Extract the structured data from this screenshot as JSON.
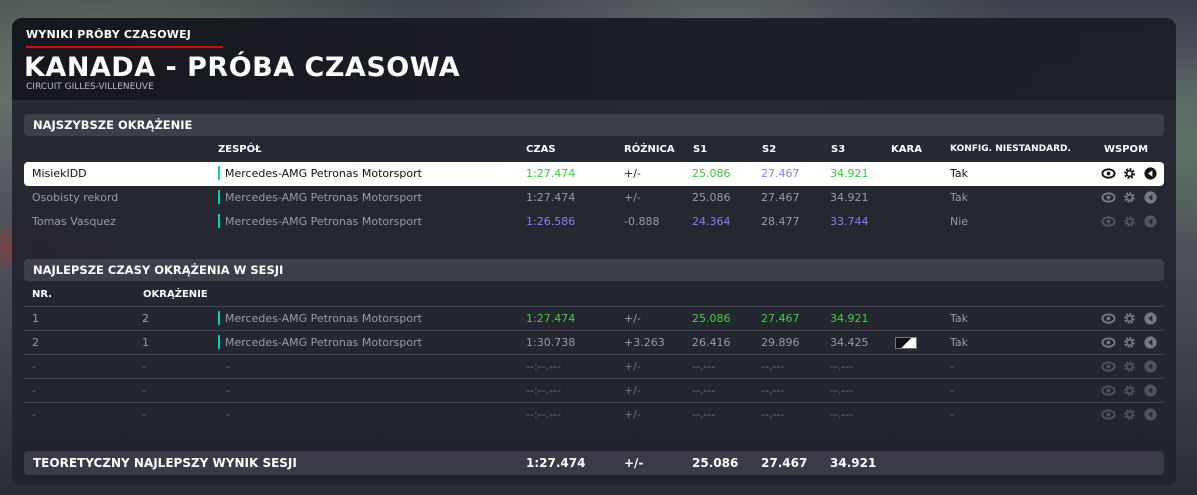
{
  "header": {
    "kicker": "WYNIKI PRÓBY CZASOWEJ",
    "title": "KANADA - PRÓBA CZASOWA",
    "circuit": "CIRCUIT GILLES-VILLENEUVE"
  },
  "fastest_lap": {
    "section_title": "NAJSZYBSZE OKRĄŻENIE",
    "columns": {
      "team": "ZESPÓŁ",
      "time": "CZAS",
      "diff": "RÓŻNICA",
      "s1": "S1",
      "s2": "S2",
      "s3": "S3",
      "penalty": "KARA",
      "config": "KONFIG. NIESTANDARD.",
      "replay": "WSPOM"
    },
    "rows": [
      {
        "name": "MisiekIDD",
        "team": "Mercedes-AMG Petronas Motorsport",
        "time": "1:27.474",
        "diff": "+/-",
        "s1": "25.086",
        "s2": "27.467",
        "s3": "34.921",
        "penalty": "",
        "config": "Tak"
      },
      {
        "name": "Osobisty rekord",
        "team": "Mercedes-AMG Petronas Motorsport",
        "time": "1:27.474",
        "diff": "+/-",
        "s1": "25.086",
        "s2": "27.467",
        "s3": "34.921",
        "penalty": "",
        "config": "Tak"
      },
      {
        "name": "Tomas Vasquez",
        "team": "Mercedes-AMG Petronas Motorsport",
        "time": "1:26.586",
        "diff": "-0.888",
        "s1": "24.364",
        "s2": "28.477",
        "s3": "33.744",
        "penalty": "",
        "config": "Nie"
      }
    ]
  },
  "session_laps": {
    "section_title": "NAJLEPSZE CZASY OKRĄŻENIA W SESJI",
    "columns": {
      "nr": "NR.",
      "lap": "OKRĄŻENIE"
    },
    "rows": [
      {
        "nr": "1",
        "lap": "2",
        "team": "Mercedes-AMG Petronas Motorsport",
        "time": "1:27.474",
        "diff": "+/-",
        "s1": "25.086",
        "s2": "27.467",
        "s3": "34.921",
        "penalty": "",
        "config": "Tak"
      },
      {
        "nr": "2",
        "lap": "1",
        "team": "Mercedes-AMG Petronas Motorsport",
        "time": "1:30.738",
        "diff": "+3.263",
        "s1": "26.416",
        "s2": "29.896",
        "s3": "34.425",
        "penalty": "flag",
        "config": "Tak"
      },
      {
        "nr": "-",
        "lap": "-",
        "team": "-",
        "time": "--:--.---",
        "diff": "+/-",
        "s1": "--.---",
        "s2": "--.---",
        "s3": "--.---",
        "penalty": "",
        "config": "-"
      },
      {
        "nr": "-",
        "lap": "-",
        "team": "-",
        "time": "--:--.---",
        "diff": "+/-",
        "s1": "--.---",
        "s2": "--.---",
        "s3": "--.---",
        "penalty": "",
        "config": "-"
      },
      {
        "nr": "-",
        "lap": "-",
        "team": "-",
        "time": "--:--.---",
        "diff": "+/-",
        "s1": "--.---",
        "s2": "--.---",
        "s3": "--.---",
        "penalty": "",
        "config": "-"
      }
    ]
  },
  "theoretical_best": {
    "label": "TEORETYCZNY NAJLEPSZY WYNIK SESJI",
    "time": "1:27.474",
    "diff": "+/-",
    "s1": "25.086",
    "s2": "27.467",
    "s3": "34.921"
  },
  "colors": {
    "team_accent": "#00d2be",
    "personal_best": "#3cd33c",
    "overall_best": "#8e7cf0",
    "kicker_underline": "#e10600"
  },
  "icons": [
    "eye-icon",
    "gear-icon",
    "replay-icon"
  ]
}
